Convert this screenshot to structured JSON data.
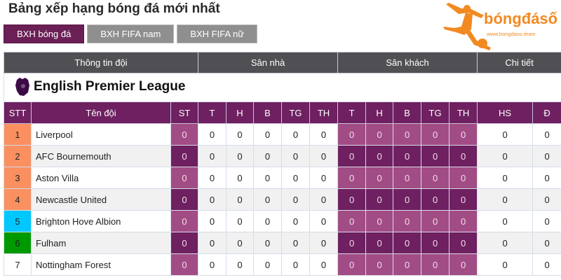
{
  "title": "Bảng xếp hạng bóng đá mới nhất",
  "tabs": [
    {
      "label": "BXH bóng đá",
      "active": true
    },
    {
      "label": "BXH FIFA nam"
    },
    {
      "label": "BXH FIFA nữ"
    }
  ],
  "logo": {
    "brand": "bóngđásố",
    "url": "www.bongdaso.team",
    "color": "#f28a22"
  },
  "groups": [
    "Thông tin đội",
    "Sân nhà",
    "Sân khách",
    "Chi tiết"
  ],
  "league": "English Premier League",
  "columns": [
    "STT",
    "Tên đội",
    "ST",
    "T",
    "H",
    "B",
    "TG",
    "TH",
    "T",
    "H",
    "B",
    "TG",
    "TH",
    "HS",
    "Đ"
  ],
  "colors": {
    "header_dark": "#505054",
    "purple_dark": "#6e2060",
    "purple_light": "#a24c85",
    "orange": "#fa9060",
    "cyan": "#00c8ff",
    "green": "#009900"
  },
  "rows": [
    {
      "rank": "1",
      "team": "Liverpool",
      "zone": "#fa9060",
      "vals": [
        "0",
        "0",
        "0",
        "0",
        "0",
        "0",
        "0",
        "0",
        "0",
        "0",
        "0",
        "0",
        "0"
      ]
    },
    {
      "rank": "2",
      "team": "AFC Bournemouth",
      "zone": "#fa9060",
      "vals": [
        "0",
        "0",
        "0",
        "0",
        "0",
        "0",
        "0",
        "0",
        "0",
        "0",
        "0",
        "0",
        "0"
      ]
    },
    {
      "rank": "3",
      "team": "Aston Villa",
      "zone": "#fa9060",
      "vals": [
        "0",
        "0",
        "0",
        "0",
        "0",
        "0",
        "0",
        "0",
        "0",
        "0",
        "0",
        "0",
        "0"
      ]
    },
    {
      "rank": "4",
      "team": "Newcastle United",
      "zone": "#fa9060",
      "vals": [
        "0",
        "0",
        "0",
        "0",
        "0",
        "0",
        "0",
        "0",
        "0",
        "0",
        "0",
        "0",
        "0"
      ]
    },
    {
      "rank": "5",
      "team": "Brighton Hove Albion",
      "zone": "#00c8ff",
      "vals": [
        "0",
        "0",
        "0",
        "0",
        "0",
        "0",
        "0",
        "0",
        "0",
        "0",
        "0",
        "0",
        "0"
      ]
    },
    {
      "rank": "6",
      "team": "Fulham",
      "zone": "#009900",
      "vals": [
        "0",
        "0",
        "0",
        "0",
        "0",
        "0",
        "0",
        "0",
        "0",
        "0",
        "0",
        "0",
        "0"
      ]
    },
    {
      "rank": "7",
      "team": "Nottingham Forest",
      "zone": "",
      "vals": [
        "0",
        "0",
        "0",
        "0",
        "0",
        "0",
        "0",
        "0",
        "0",
        "0",
        "0",
        "0",
        "0"
      ]
    }
  ]
}
